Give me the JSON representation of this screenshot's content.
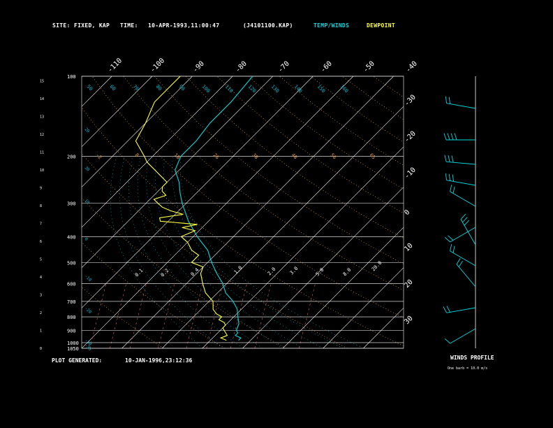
{
  "header": {
    "site_label": "SITE:",
    "site_value": "FIXED, KAP",
    "time_label": "TIME:",
    "time_value": "10-APR-1993,11:00:47",
    "file": "(J4101100.KAP)",
    "legend_temp": "TEMP/WINDS",
    "legend_dew": "DEWPOINT"
  },
  "footer": {
    "generated_label": "PLOT GENERATED:",
    "generated_value": "10-JAN-1996,23:12:36",
    "winds_profile": "WINDS PROFILE",
    "barb_note": "One barb = 10.0 m/s"
  },
  "colors": {
    "background": "#000000",
    "temperature": "#00d8e0",
    "dewpoint": "#ffff40",
    "isobar": "#ffffff",
    "isotherm": "#ffffff",
    "dry_adiabat": "#e09a40",
    "moist_adiabat": "#00b8d0",
    "mixing_ratio": "#d06060"
  },
  "chart_data": {
    "type": "line",
    "title": "",
    "pressure_levels": [
      1050,
      1000,
      900,
      800,
      700,
      600,
      500,
      400,
      300,
      200,
      100
    ],
    "left_axis_ticks": [
      0,
      1,
      2,
      3,
      4,
      5,
      6,
      7,
      8,
      9,
      10,
      11,
      12,
      13,
      14,
      15
    ],
    "isotherm_top_labels": [
      "-110",
      "-100",
      "-90",
      "-80",
      "-70",
      "-60",
      "-50",
      "-40"
    ],
    "isotherm_right_labels": [
      "-30",
      "-20",
      "-10",
      "0",
      "10",
      "20",
      "30"
    ],
    "dry_adiabat_labels": [
      "-2",
      "8",
      "18",
      "26",
      "38",
      "48",
      "56",
      "65"
    ],
    "theta_top_labels": [
      "50",
      "60",
      "70",
      "80",
      "90",
      "100",
      "110",
      "120",
      "130",
      "140",
      "150",
      "160"
    ],
    "theta_left_labels": [
      "20",
      "30",
      "10",
      "0",
      "-10",
      "-20",
      "-30",
      "-35"
    ],
    "mixing_ratio_labels": [
      "0.1",
      "0.2",
      "0.4",
      "1.0",
      "2.0",
      "3.0",
      "5.0",
      "8.0",
      "20.0"
    ],
    "axis_range": {
      "pressure_bottom": 1050,
      "pressure_top": 100,
      "temp_left": -40,
      "temp_right": 40
    },
    "series": [
      {
        "name": "TEMP/WINDS",
        "points": [
          [
            980,
            -3
          ],
          [
            960,
            -3
          ],
          [
            940,
            -5
          ],
          [
            920,
            -5
          ],
          [
            900,
            -6
          ],
          [
            850,
            -7
          ],
          [
            800,
            -9
          ],
          [
            750,
            -11
          ],
          [
            700,
            -14
          ],
          [
            650,
            -18
          ],
          [
            600,
            -21
          ],
          [
            550,
            -25
          ],
          [
            500,
            -29
          ],
          [
            450,
            -33
          ],
          [
            400,
            -39
          ],
          [
            350,
            -45
          ],
          [
            300,
            -51
          ],
          [
            275,
            -54
          ],
          [
            250,
            -57
          ],
          [
            225,
            -61
          ],
          [
            200,
            -63
          ],
          [
            175,
            -63
          ],
          [
            150,
            -64
          ],
          [
            125,
            -64
          ],
          [
            100,
            -65
          ]
        ]
      },
      {
        "name": "DEWPOINT",
        "points": [
          [
            980,
            -6
          ],
          [
            960,
            -8
          ],
          [
            940,
            -7
          ],
          [
            920,
            -8
          ],
          [
            900,
            -9
          ],
          [
            880,
            -10
          ],
          [
            860,
            -10
          ],
          [
            840,
            -11
          ],
          [
            820,
            -13
          ],
          [
            800,
            -13
          ],
          [
            780,
            -15
          ],
          [
            750,
            -17
          ],
          [
            700,
            -19
          ],
          [
            650,
            -23
          ],
          [
            600,
            -26
          ],
          [
            550,
            -29
          ],
          [
            520,
            -30
          ],
          [
            500,
            -34
          ],
          [
            470,
            -34
          ],
          [
            450,
            -37
          ],
          [
            420,
            -40
          ],
          [
            400,
            -43
          ],
          [
            380,
            -41
          ],
          [
            370,
            -45
          ],
          [
            360,
            -42
          ],
          [
            350,
            -52
          ],
          [
            340,
            -53
          ],
          [
            330,
            -48
          ],
          [
            320,
            -52
          ],
          [
            310,
            -55
          ],
          [
            300,
            -57
          ],
          [
            290,
            -59
          ],
          [
            280,
            -57
          ],
          [
            270,
            -59
          ],
          [
            260,
            -60
          ],
          [
            250,
            -60
          ],
          [
            225,
            -66
          ],
          [
            210,
            -70
          ],
          [
            200,
            -72
          ],
          [
            175,
            -78
          ],
          [
            150,
            -80
          ],
          [
            125,
            -83
          ],
          [
            100,
            -83
          ]
        ]
      }
    ],
    "wind_barbs": [
      {
        "y": 155,
        "dir": 280,
        "speed": 20
      },
      {
        "y": 200,
        "dir": 270,
        "speed": 40
      },
      {
        "y": 235,
        "dir": 275,
        "speed": 30
      },
      {
        "y": 265,
        "dir": 280,
        "speed": 30
      },
      {
        "y": 295,
        "dir": 300,
        "speed": 20
      },
      {
        "y": 325,
        "dir": 240,
        "speed": 20
      },
      {
        "y": 350,
        "dir": 330,
        "speed": 30
      },
      {
        "y": 380,
        "dir": 300,
        "speed": 20
      },
      {
        "y": 410,
        "dir": 320,
        "speed": 20
      },
      {
        "y": 440,
        "dir": 260,
        "speed": 20
      },
      {
        "y": 470,
        "dir": 240,
        "speed": 10
      }
    ]
  }
}
